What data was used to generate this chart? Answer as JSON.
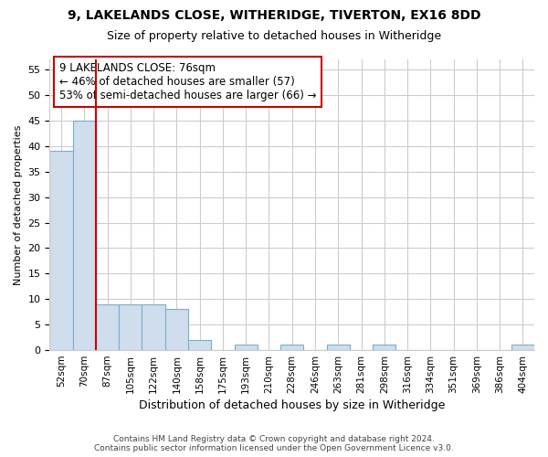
{
  "title1": "9, LAKELANDS CLOSE, WITHERIDGE, TIVERTON, EX16 8DD",
  "title2": "Size of property relative to detached houses in Witheridge",
  "xlabel": "Distribution of detached houses by size in Witheridge",
  "ylabel": "Number of detached properties",
  "categories": [
    "52sqm",
    "70sqm",
    "87sqm",
    "105sqm",
    "122sqm",
    "140sqm",
    "158sqm",
    "175sqm",
    "193sqm",
    "210sqm",
    "228sqm",
    "246sqm",
    "263sqm",
    "281sqm",
    "298sqm",
    "316sqm",
    "334sqm",
    "351sqm",
    "369sqm",
    "386sqm",
    "404sqm"
  ],
  "values": [
    39,
    45,
    9,
    9,
    9,
    8,
    2,
    0,
    1,
    0,
    1,
    0,
    1,
    0,
    1,
    0,
    0,
    0,
    0,
    0,
    1
  ],
  "bar_color": "#cfdded",
  "bar_edge_color": "#7aaecb",
  "vline_bin_index": 1,
  "vline_color": "#cc0000",
  "annotation_line1": "9 LAKELANDS CLOSE: 76sqm",
  "annotation_line2": "← 46% of detached houses are smaller (57)",
  "annotation_line3": "53% of semi-detached houses are larger (66) →",
  "annotation_box_color": "#ffffff",
  "annotation_box_edge": "#cc0000",
  "ylim": [
    0,
    57
  ],
  "yticks": [
    0,
    5,
    10,
    15,
    20,
    25,
    30,
    35,
    40,
    45,
    50,
    55
  ],
  "footnote": "Contains HM Land Registry data © Crown copyright and database right 2024.\nContains public sector information licensed under the Open Government Licence v3.0.",
  "background_color": "#ffffff",
  "grid_color": "#cccccc",
  "title1_fontsize": 10,
  "title2_fontsize": 9,
  "bar_width": 1.0
}
